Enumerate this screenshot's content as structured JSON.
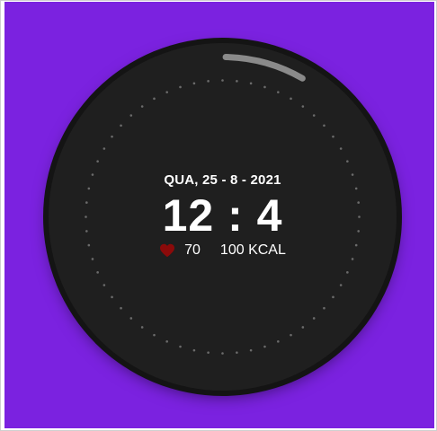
{
  "watch": {
    "date": "QUA, 25 - 8 - 2021",
    "time": "12 : 4",
    "heart_rate": "70",
    "calories": "100 KCAL",
    "progress": 0.08
  },
  "colors": {
    "background": "#7b22e0",
    "face": "#1f1f1f",
    "heart": "#8b0a0a",
    "dots": "#6b6b6b",
    "progress_arc": "#8a8a8a"
  },
  "icons": {
    "heart": "heart-icon"
  }
}
